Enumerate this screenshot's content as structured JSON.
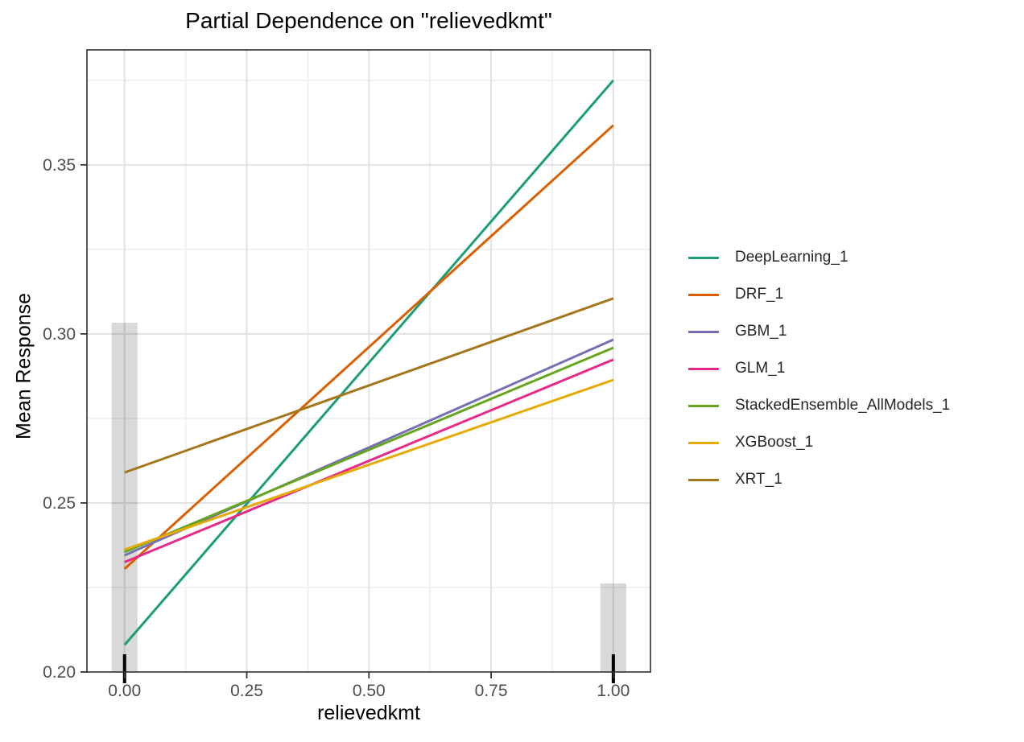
{
  "chart_data": {
    "type": "line",
    "title": "Partial Dependence on \"relievedkmt\"",
    "xlabel": "relievedkmt",
    "ylabel": "Mean Response",
    "xlim": [
      -0.077,
      1.076
    ],
    "ylim": [
      0.2,
      0.384
    ],
    "grid": true,
    "legend_position": "right",
    "x_ticks": {
      "values": [
        0.0,
        0.25,
        0.5,
        0.75,
        1.0
      ],
      "labels": [
        "0.00",
        "0.25",
        "0.50",
        "0.75",
        "1.00"
      ],
      "minor": [
        0.125,
        0.375,
        0.625,
        0.875
      ]
    },
    "y_ticks": {
      "values": [
        0.2,
        0.25,
        0.3,
        0.35
      ],
      "labels": [
        "0.20",
        "0.25",
        "0.30",
        "0.35"
      ],
      "minor": [
        0.225,
        0.275,
        0.325,
        0.375
      ]
    },
    "series": [
      {
        "name": "DeepLearning_1",
        "color": "#1B9E77",
        "x": [
          0,
          1
        ],
        "y": [
          0.208,
          0.375
        ]
      },
      {
        "name": "DRF_1",
        "color": "#D95F02",
        "x": [
          0,
          1
        ],
        "y": [
          0.2305,
          0.3617
        ]
      },
      {
        "name": "GBM_1",
        "color": "#7570B3",
        "x": [
          0,
          1
        ],
        "y": [
          0.2345,
          0.2983
        ]
      },
      {
        "name": "GLM_1",
        "color": "#E7298A",
        "x": [
          0,
          1
        ],
        "y": [
          0.2325,
          0.2924
        ]
      },
      {
        "name": "StackedEnsemble_AllModels_1",
        "color": "#66A61E",
        "x": [
          0,
          1
        ],
        "y": [
          0.2355,
          0.2959
        ]
      },
      {
        "name": "XGBoost_1",
        "color": "#E6AB02",
        "x": [
          0,
          1
        ],
        "y": [
          0.2362,
          0.2864
        ]
      },
      {
        "name": "XRT_1",
        "color": "#A6761D",
        "x": [
          0,
          1
        ],
        "y": [
          0.259,
          0.3105
        ]
      }
    ],
    "histogram_bars": [
      {
        "x": 0.0,
        "top": 0.3033,
        "width": 0.053
      },
      {
        "x": 1.0,
        "top": 0.2262,
        "width": 0.053
      }
    ],
    "rug": [
      0.0,
      1.0
    ],
    "colors": {
      "grid_major": "#e2e2e2",
      "grid_minor": "#f0f0f0",
      "bar_fill": "rgba(0,0,0,0.15)",
      "panel_border": "#2e2e2e",
      "tick_mark": "#333333",
      "tick_label": "#4d4d4d",
      "rug": "#000000"
    }
  }
}
